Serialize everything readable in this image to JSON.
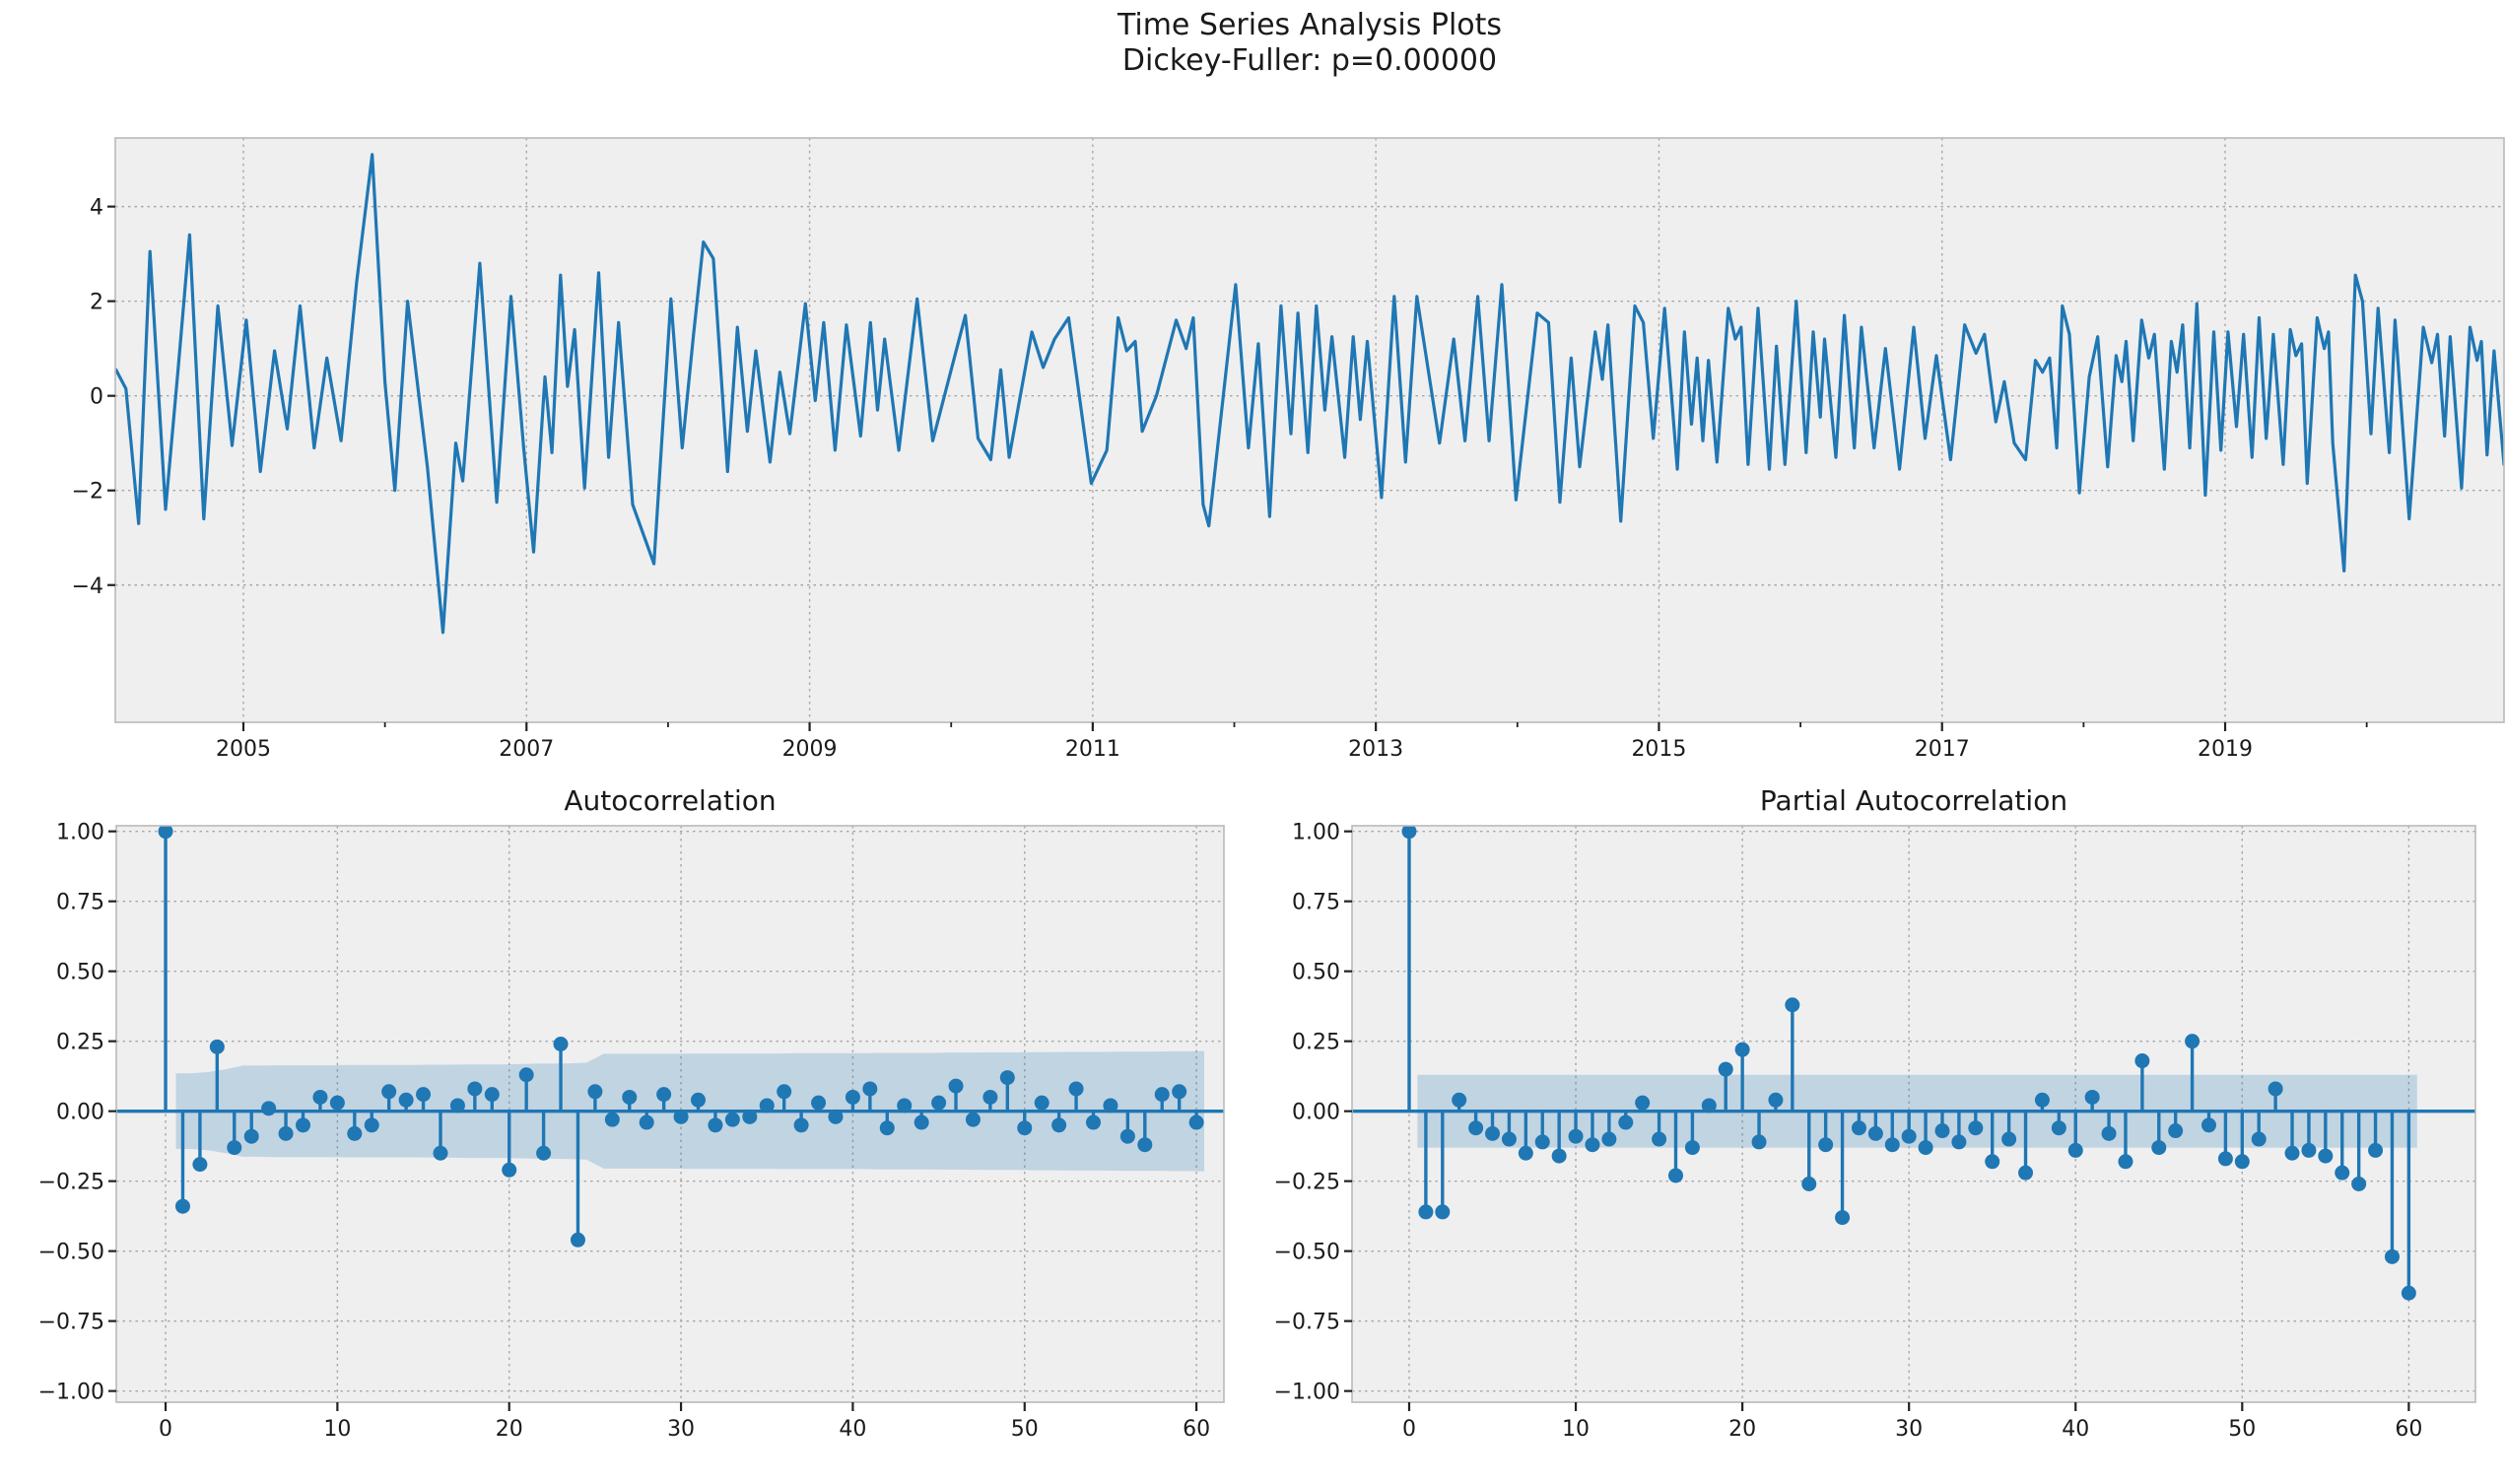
{
  "title": {
    "line1": "Time Series Analysis Plots",
    "line2": "Dickey-Fuller: p=0.00000"
  },
  "colors": {
    "line": "#1f77b4",
    "marker": "#1f77b4",
    "zero_line": "#1f77b4",
    "conf_band": "#1f77b4",
    "conf_band_opacity": 0.22,
    "axes_bg": "#efefef",
    "figure_bg": "#ffffff",
    "grid": "#a0a0a0",
    "spine": "#b9b9b9",
    "tick": "#222222",
    "text": "#1a1a1a"
  },
  "chart_data": [
    {
      "id": "timeseries",
      "type": "line",
      "title": "",
      "xlabel": "",
      "ylabel": "",
      "xlim": [
        2004.095,
        2020.97
      ],
      "ylim": [
        -6.9,
        5.45
      ],
      "x_major_ticks": [
        2005,
        2007,
        2009,
        2011,
        2013,
        2015,
        2017,
        2019
      ],
      "x_major_labels": [
        "2005",
        "2007",
        "2009",
        "2011",
        "2013",
        "2015",
        "2017",
        "2019"
      ],
      "x_minor_ticks": [
        2004,
        2006,
        2008,
        2010,
        2012,
        2014,
        2016,
        2018,
        2020
      ],
      "y_ticks": [
        -4,
        -2,
        0,
        2,
        4
      ],
      "y_tick_labels": [
        "−4",
        "−2",
        "0",
        "2",
        "4"
      ],
      "grid": true,
      "points": [
        [
          2004.1,
          0.55
        ],
        [
          2004.17,
          0.15
        ],
        [
          2004.26,
          -2.7
        ],
        [
          2004.34,
          3.05
        ],
        [
          2004.45,
          -2.4
        ],
        [
          2004.54,
          0.6
        ],
        [
          2004.62,
          3.4
        ],
        [
          2004.72,
          -2.6
        ],
        [
          2004.82,
          1.9
        ],
        [
          2004.92,
          -1.05
        ],
        [
          2005.02,
          1.6
        ],
        [
          2005.12,
          -1.6
        ],
        [
          2005.22,
          0.95
        ],
        [
          2005.31,
          -0.7
        ],
        [
          2005.4,
          1.9
        ],
        [
          2005.5,
          -1.1
        ],
        [
          2005.59,
          0.8
        ],
        [
          2005.69,
          -0.95
        ],
        [
          2005.8,
          2.4
        ],
        [
          2005.91,
          5.1
        ],
        [
          2006.0,
          0.3
        ],
        [
          2006.07,
          -2.0
        ],
        [
          2006.16,
          2.0
        ],
        [
          2006.3,
          -1.5
        ],
        [
          2006.41,
          -5.0
        ],
        [
          2006.5,
          -1.0
        ],
        [
          2006.55,
          -1.8
        ],
        [
          2006.67,
          2.8
        ],
        [
          2006.79,
          -2.25
        ],
        [
          2006.89,
          2.1
        ],
        [
          2006.98,
          -1.1
        ],
        [
          2007.05,
          -3.3
        ],
        [
          2007.13,
          0.4
        ],
        [
          2007.18,
          -1.2
        ],
        [
          2007.24,
          2.55
        ],
        [
          2007.29,
          0.2
        ],
        [
          2007.34,
          1.4
        ],
        [
          2007.41,
          -1.95
        ],
        [
          2007.51,
          2.6
        ],
        [
          2007.58,
          -1.3
        ],
        [
          2007.65,
          1.55
        ],
        [
          2007.75,
          -2.3
        ],
        [
          2007.9,
          -3.55
        ],
        [
          2008.02,
          2.05
        ],
        [
          2008.1,
          -1.1
        ],
        [
          2008.18,
          1.3
        ],
        [
          2008.25,
          3.25
        ],
        [
          2008.32,
          2.9
        ],
        [
          2008.42,
          -1.6
        ],
        [
          2008.49,
          1.45
        ],
        [
          2008.56,
          -0.75
        ],
        [
          2008.62,
          0.95
        ],
        [
          2008.72,
          -1.4
        ],
        [
          2008.79,
          0.5
        ],
        [
          2008.86,
          -0.8
        ],
        [
          2008.97,
          1.95
        ],
        [
          2009.04,
          -0.1
        ],
        [
          2009.1,
          1.55
        ],
        [
          2009.18,
          -1.15
        ],
        [
          2009.26,
          1.5
        ],
        [
          2009.36,
          -0.85
        ],
        [
          2009.43,
          1.55
        ],
        [
          2009.48,
          -0.3
        ],
        [
          2009.53,
          1.2
        ],
        [
          2009.63,
          -1.15
        ],
        [
          2009.76,
          2.05
        ],
        [
          2009.87,
          -0.95
        ],
        [
          2010.1,
          1.7
        ],
        [
          2010.19,
          -0.9
        ],
        [
          2010.28,
          -1.35
        ],
        [
          2010.35,
          0.55
        ],
        [
          2010.41,
          -1.3
        ],
        [
          2010.57,
          1.35
        ],
        [
          2010.65,
          0.6
        ],
        [
          2010.73,
          1.2
        ],
        [
          2010.83,
          1.65
        ],
        [
          2010.99,
          -1.85
        ],
        [
          2011.1,
          -1.15
        ],
        [
          2011.18,
          1.65
        ],
        [
          2011.24,
          0.95
        ],
        [
          2011.3,
          1.15
        ],
        [
          2011.35,
          -0.75
        ],
        [
          2011.45,
          0.0
        ],
        [
          2011.59,
          1.6
        ],
        [
          2011.66,
          1.0
        ],
        [
          2011.71,
          1.65
        ],
        [
          2011.78,
          -2.3
        ],
        [
          2011.82,
          -2.75
        ],
        [
          2012.01,
          2.35
        ],
        [
          2012.1,
          -1.1
        ],
        [
          2012.17,
          1.1
        ],
        [
          2012.25,
          -2.55
        ],
        [
          2012.33,
          1.9
        ],
        [
          2012.4,
          -0.8
        ],
        [
          2012.45,
          1.75
        ],
        [
          2012.52,
          -1.2
        ],
        [
          2012.58,
          1.9
        ],
        [
          2012.64,
          -0.3
        ],
        [
          2012.69,
          1.25
        ],
        [
          2012.78,
          -1.3
        ],
        [
          2012.84,
          1.25
        ],
        [
          2012.89,
          -0.5
        ],
        [
          2012.94,
          1.15
        ],
        [
          2013.04,
          -2.15
        ],
        [
          2013.13,
          2.1
        ],
        [
          2013.21,
          -1.4
        ],
        [
          2013.29,
          2.1
        ],
        [
          2013.45,
          -1.0
        ],
        [
          2013.55,
          1.2
        ],
        [
          2013.63,
          -0.95
        ],
        [
          2013.72,
          2.1
        ],
        [
          2013.8,
          -0.95
        ],
        [
          2013.89,
          2.35
        ],
        [
          2013.99,
          -2.2
        ],
        [
          2014.14,
          1.75
        ],
        [
          2014.22,
          1.55
        ],
        [
          2014.3,
          -2.25
        ],
        [
          2014.38,
          0.8
        ],
        [
          2014.44,
          -1.5
        ],
        [
          2014.55,
          1.35
        ],
        [
          2014.6,
          0.35
        ],
        [
          2014.64,
          1.5
        ],
        [
          2014.73,
          -2.65
        ],
        [
          2014.83,
          1.9
        ],
        [
          2014.89,
          1.55
        ],
        [
          2014.96,
          -0.9
        ],
        [
          2015.04,
          1.85
        ],
        [
          2015.13,
          -1.55
        ],
        [
          2015.18,
          1.35
        ],
        [
          2015.23,
          -0.6
        ],
        [
          2015.27,
          0.8
        ],
        [
          2015.31,
          -0.95
        ],
        [
          2015.35,
          0.75
        ],
        [
          2015.41,
          -1.4
        ],
        [
          2015.49,
          1.85
        ],
        [
          2015.54,
          1.2
        ],
        [
          2015.58,
          1.45
        ],
        [
          2015.63,
          -1.45
        ],
        [
          2015.7,
          1.85
        ],
        [
          2015.78,
          -1.55
        ],
        [
          2015.83,
          1.05
        ],
        [
          2015.89,
          -1.45
        ],
        [
          2015.97,
          2.0
        ],
        [
          2016.04,
          -1.2
        ],
        [
          2016.09,
          1.35
        ],
        [
          2016.14,
          -0.45
        ],
        [
          2016.17,
          1.2
        ],
        [
          2016.25,
          -1.3
        ],
        [
          2016.31,
          1.7
        ],
        [
          2016.38,
          -1.1
        ],
        [
          2016.43,
          1.45
        ],
        [
          2016.52,
          -1.1
        ],
        [
          2016.6,
          1.0
        ],
        [
          2016.7,
          -1.55
        ],
        [
          2016.8,
          1.45
        ],
        [
          2016.88,
          -0.9
        ],
        [
          2016.96,
          0.85
        ],
        [
          2017.06,
          -1.35
        ],
        [
          2017.16,
          1.5
        ],
        [
          2017.24,
          0.9
        ],
        [
          2017.3,
          1.3
        ],
        [
          2017.38,
          -0.55
        ],
        [
          2017.44,
          0.3
        ],
        [
          2017.51,
          -1.0
        ],
        [
          2017.59,
          -1.35
        ],
        [
          2017.66,
          0.75
        ],
        [
          2017.71,
          0.5
        ],
        [
          2017.76,
          0.8
        ],
        [
          2017.81,
          -1.1
        ],
        [
          2017.85,
          1.9
        ],
        [
          2017.9,
          1.3
        ],
        [
          2017.97,
          -2.05
        ],
        [
          2018.04,
          0.4
        ],
        [
          2018.1,
          1.25
        ],
        [
          2018.17,
          -1.5
        ],
        [
          2018.23,
          0.85
        ],
        [
          2018.27,
          0.3
        ],
        [
          2018.3,
          1.15
        ],
        [
          2018.35,
          -0.95
        ],
        [
          2018.41,
          1.6
        ],
        [
          2018.46,
          0.8
        ],
        [
          2018.5,
          1.3
        ],
        [
          2018.57,
          -1.55
        ],
        [
          2018.62,
          1.15
        ],
        [
          2018.66,
          0.5
        ],
        [
          2018.7,
          1.5
        ],
        [
          2018.75,
          -1.1
        ],
        [
          2018.8,
          1.95
        ],
        [
          2018.86,
          -2.1
        ],
        [
          2018.92,
          1.35
        ],
        [
          2018.97,
          -1.15
        ],
        [
          2019.02,
          1.35
        ],
        [
          2019.08,
          -0.65
        ],
        [
          2019.13,
          1.3
        ],
        [
          2019.19,
          -1.3
        ],
        [
          2019.24,
          1.65
        ],
        [
          2019.29,
          -0.9
        ],
        [
          2019.34,
          1.3
        ],
        [
          2019.41,
          -1.45
        ],
        [
          2019.46,
          1.4
        ],
        [
          2019.5,
          0.85
        ],
        [
          2019.54,
          1.1
        ],
        [
          2019.58,
          -1.85
        ],
        [
          2019.65,
          1.65
        ],
        [
          2019.7,
          1.0
        ],
        [
          2019.73,
          1.35
        ],
        [
          2019.76,
          -1.0
        ],
        [
          2019.84,
          -3.7
        ],
        [
          2019.92,
          2.55
        ],
        [
          2019.97,
          2.0
        ],
        [
          2020.03,
          -0.8
        ],
        [
          2020.08,
          1.85
        ],
        [
          2020.16,
          -1.2
        ],
        [
          2020.2,
          1.6
        ],
        [
          2020.3,
          -2.6
        ],
        [
          2020.4,
          1.45
        ],
        [
          2020.46,
          0.7
        ],
        [
          2020.5,
          1.3
        ],
        [
          2020.55,
          -0.85
        ],
        [
          2020.59,
          1.25
        ],
        [
          2020.67,
          -1.95
        ],
        [
          2020.73,
          1.45
        ],
        [
          2020.78,
          0.75
        ],
        [
          2020.81,
          1.15
        ],
        [
          2020.85,
          -1.25
        ],
        [
          2020.9,
          0.95
        ],
        [
          2020.97,
          -1.45
        ]
      ]
    },
    {
      "id": "acf",
      "type": "stem",
      "title": "Autocorrelation",
      "xlim": [
        -2.87,
        61.6
      ],
      "ylim": [
        -1.04,
        1.02
      ],
      "x_ticks": [
        0,
        10,
        20,
        30,
        40,
        50,
        60
      ],
      "x_tick_labels": [
        "0",
        "10",
        "20",
        "30",
        "40",
        "50",
        "60"
      ],
      "y_ticks": [
        1.0,
        0.75,
        0.5,
        0.25,
        0.0,
        -0.25,
        -0.5,
        -0.75,
        -1.0
      ],
      "y_tick_labels": [
        "1.00",
        "0.75",
        "0.50",
        "0.25",
        "0.00",
        "−0.25",
        "−0.50",
        "−0.75",
        "−1.00"
      ],
      "grid": true,
      "lags": "0-60",
      "values": [
        1.0,
        -0.34,
        -0.19,
        0.23,
        -0.13,
        -0.09,
        0.01,
        -0.08,
        -0.05,
        0.05,
        0.03,
        -0.08,
        -0.05,
        0.07,
        0.04,
        0.06,
        -0.15,
        0.02,
        0.08,
        0.06,
        -0.21,
        0.13,
        -0.15,
        0.24,
        -0.46,
        0.07,
        -0.03,
        0.05,
        -0.04,
        0.06,
        -0.02,
        0.04,
        -0.05,
        -0.03,
        -0.02,
        0.02,
        0.07,
        -0.05,
        0.03,
        -0.02,
        0.05,
        0.08,
        -0.06,
        0.02,
        -0.04,
        0.03,
        0.09,
        -0.03,
        0.05,
        0.12,
        -0.06,
        0.03,
        -0.05,
        0.08,
        -0.04,
        0.02,
        -0.09,
        -0.12,
        0.06,
        0.07,
        -0.04
      ],
      "conf_band": [
        0,
        0.135,
        0.14,
        0.15,
        0.163,
        0.163,
        0.164,
        0.164,
        0.164,
        0.164,
        0.165,
        0.165,
        0.165,
        0.165,
        0.165,
        0.166,
        0.166,
        0.167,
        0.167,
        0.167,
        0.168,
        0.17,
        0.17,
        0.171,
        0.173,
        0.205,
        0.205,
        0.205,
        0.205,
        0.205,
        0.206,
        0.206,
        0.206,
        0.206,
        0.206,
        0.206,
        0.207,
        0.207,
        0.207,
        0.207,
        0.207,
        0.208,
        0.208,
        0.208,
        0.208,
        0.209,
        0.209,
        0.21,
        0.21,
        0.21,
        0.211,
        0.211,
        0.212,
        0.212,
        0.212,
        0.213,
        0.213,
        0.213,
        0.214,
        0.214,
        0.215
      ]
    },
    {
      "id": "pacf",
      "type": "stem",
      "title": "Partial Autocorrelation",
      "xlim": [
        -3.43,
        64.0
      ],
      "ylim": [
        -1.04,
        1.02
      ],
      "x_ticks": [
        0,
        10,
        20,
        30,
        40,
        50,
        60
      ],
      "x_tick_labels": [
        "0",
        "10",
        "20",
        "30",
        "40",
        "50",
        "60"
      ],
      "y_ticks": [
        1.0,
        0.75,
        0.5,
        0.25,
        0.0,
        -0.25,
        -0.5,
        -0.75,
        -1.0
      ],
      "y_tick_labels": [
        "1.00",
        "0.75",
        "0.50",
        "0.25",
        "0.00",
        "−0.25",
        "−0.50",
        "−0.75",
        "−1.00"
      ],
      "grid": true,
      "lags": "0-60",
      "values": [
        1.0,
        -0.36,
        -0.36,
        0.04,
        -0.06,
        -0.08,
        -0.1,
        -0.15,
        -0.11,
        -0.16,
        -0.09,
        -0.12,
        -0.1,
        -0.04,
        0.03,
        -0.1,
        -0.23,
        -0.13,
        0.02,
        0.15,
        0.22,
        -0.11,
        0.04,
        0.38,
        -0.26,
        -0.12,
        -0.38,
        -0.06,
        -0.08,
        -0.12,
        -0.09,
        -0.13,
        -0.07,
        -0.11,
        -0.06,
        -0.18,
        -0.1,
        -0.22,
        0.04,
        -0.06,
        -0.14,
        0.05,
        -0.08,
        -0.18,
        0.18,
        -0.13,
        -0.07,
        0.25,
        -0.05,
        -0.17,
        -0.18,
        -0.1,
        0.08,
        -0.15,
        -0.14,
        -0.16,
        -0.22,
        -0.26,
        -0.14,
        -0.52,
        -0.65
      ],
      "conf_band": 0.13
    }
  ]
}
